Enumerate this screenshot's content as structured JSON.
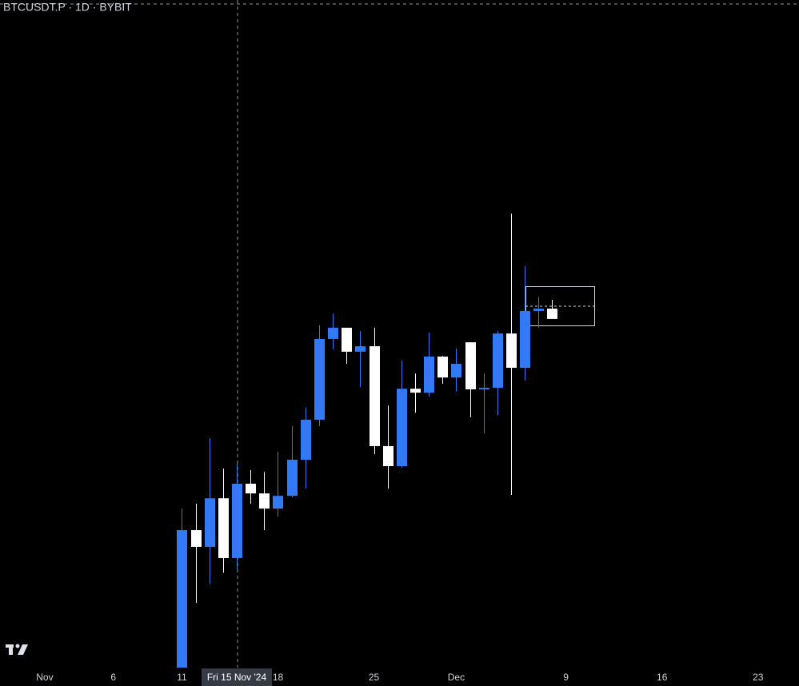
{
  "chart_data": {
    "type": "candlestick",
    "title": "BTCUSDT.P · 1D · BYBIT",
    "crosshair_label": "Fri 15 Nov '24",
    "x": [
      "2024-11-11",
      "2024-11-12",
      "2024-11-13",
      "2024-11-14",
      "2024-11-15",
      "2024-11-16",
      "2024-11-17",
      "2024-11-18",
      "2024-11-19",
      "2024-11-20",
      "2024-11-21",
      "2024-11-22",
      "2024-11-23",
      "2024-11-24",
      "2024-11-25",
      "2024-11-26",
      "2024-11-27",
      "2024-11-28",
      "2024-11-29",
      "2024-11-30",
      "2024-12-01",
      "2024-12-02",
      "2024-12-03",
      "2024-12-04",
      "2024-12-05",
      "2024-12-06",
      "2024-12-07",
      "2024-12-08"
    ],
    "open": [
      89000,
      93530,
      92980,
      94580,
      92610,
      95060,
      94740,
      94240,
      94660,
      95850,
      97170,
      99830,
      100200,
      99410,
      99590,
      96300,
      95640,
      98190,
      98060,
      99250,
      98560,
      99720,
      98170,
      98220,
      100010,
      98880,
      100750,
      100830
    ],
    "high": [
      94240,
      94400,
      96560,
      95560,
      95720,
      95510,
      95450,
      96110,
      96960,
      97560,
      100280,
      100670,
      100200,
      100090,
      100200,
      97640,
      99120,
      98690,
      100040,
      99270,
      99510,
      99720,
      98690,
      100090,
      103960,
      102230,
      101220,
      101120
    ],
    "low": [
      89000,
      91130,
      91760,
      92130,
      92240,
      94400,
      93530,
      93980,
      94610,
      94900,
      96960,
      99490,
      99010,
      98250,
      96030,
      94900,
      95590,
      97400,
      97930,
      98350,
      98110,
      97250,
      96720,
      97320,
      94690,
      98460,
      100200,
      100490
    ],
    "close": [
      93530,
      92980,
      94580,
      92610,
      95060,
      94740,
      94240,
      94660,
      95850,
      97170,
      99830,
      100200,
      99410,
      99590,
      96300,
      95640,
      98190,
      98060,
      99250,
      98560,
      99010,
      98170,
      98220,
      100010,
      98880,
      100750,
      100830,
      100490
    ],
    "up_color": "#3179f5",
    "down_color": "#ffffff",
    "ylim": [
      89000,
      111000
    ],
    "xlim": [
      "2024-10-29",
      "2024-12-27"
    ],
    "xticks": [
      {
        "value": "2024-11-01",
        "label": "Nov"
      },
      {
        "value": "2024-11-06",
        "label": "6"
      },
      {
        "value": "2024-11-11",
        "label": "11"
      },
      {
        "value": "2024-11-18",
        "label": "18"
      },
      {
        "value": "2024-11-25",
        "label": "25"
      },
      {
        "value": "2024-12-01",
        "label": "Dec"
      },
      {
        "value": "2024-12-09",
        "label": "9"
      },
      {
        "value": "2024-12-16",
        "label": "16"
      },
      {
        "value": "2024-12-23",
        "label": "23"
      }
    ]
  }
}
